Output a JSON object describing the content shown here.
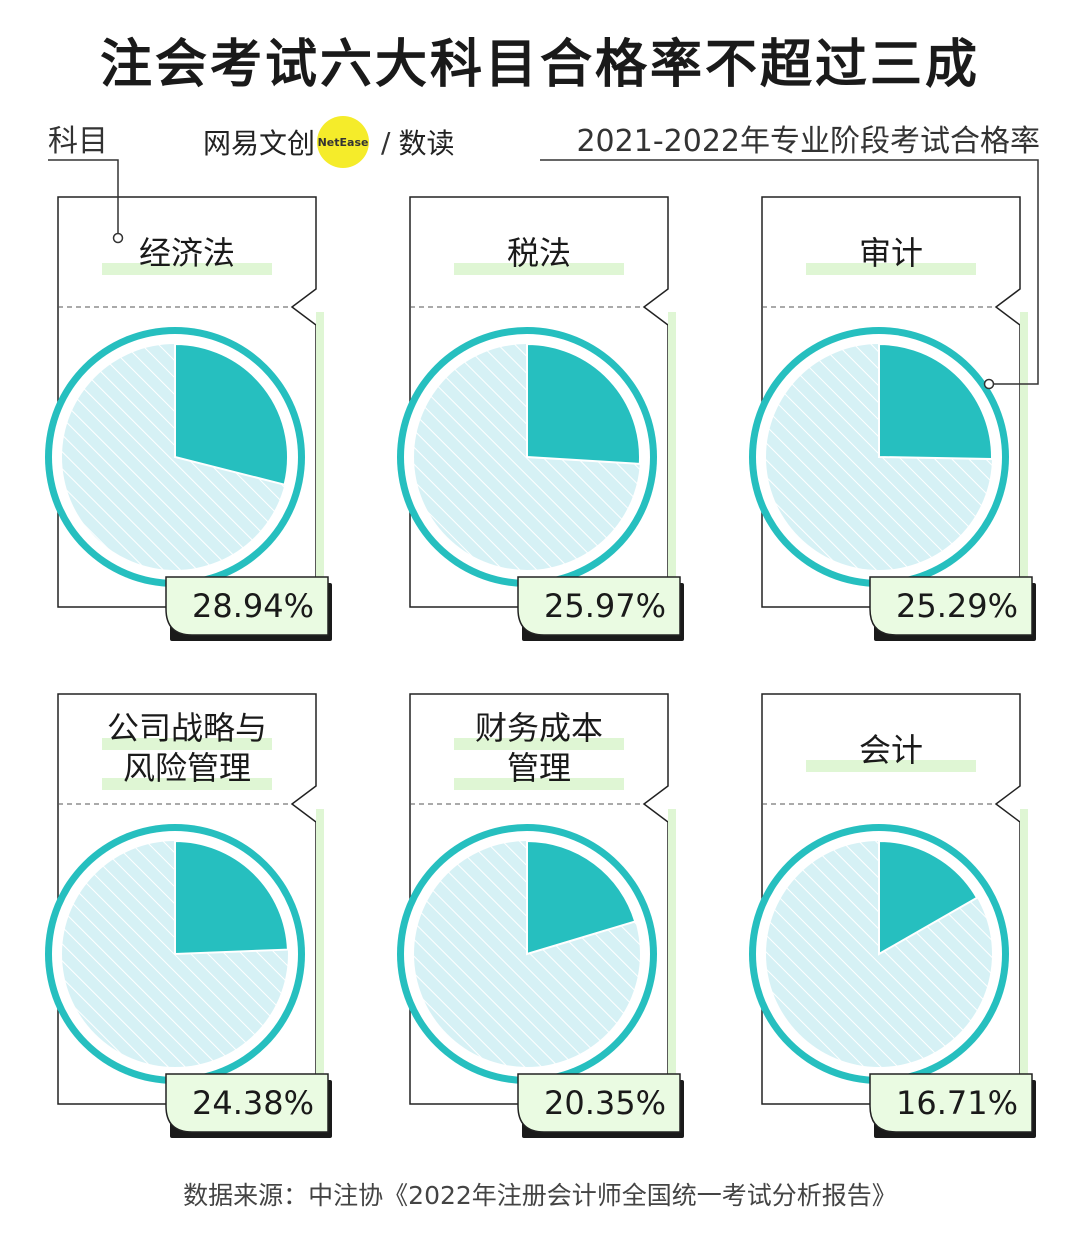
{
  "title": "注会考试六大科目合格率不超过三成",
  "axis_left_label": "科目",
  "brand": {
    "name": "网易文创",
    "logo_text": "NetEase",
    "slash": "/",
    "sub": "数读"
  },
  "axis_right_label": "2021-2022年专业阶段考试合格率",
  "source": "数据来源：中注协《2022年注册会计师全国统一考试分析报告》",
  "colors": {
    "teal": "#26bfbf",
    "light_blue": "#d6f1f5",
    "label_highlight": "#dff6d4",
    "pct_bg": "#eafbe2",
    "logo_yellow": "#f5ec2a"
  },
  "chart_data": {
    "type": "pie",
    "title": "注会考试六大科目合格率不超过三成",
    "subtitle": "2021-2022年专业阶段考试合格率",
    "categories": [
      "经济法",
      "税法",
      "审计",
      "公司战略与风险管理",
      "财务成本管理",
      "会计"
    ],
    "label_lines": [
      [
        "经济法"
      ],
      [
        "税法"
      ],
      [
        "审计"
      ],
      [
        "公司战略与",
        "风险管理"
      ],
      [
        "财务成本",
        "管理"
      ],
      [
        "会计"
      ]
    ],
    "values": [
      28.94,
      25.97,
      25.29,
      24.38,
      20.35,
      16.71
    ],
    "value_labels": [
      "28.94%",
      "25.97%",
      "25.29%",
      "24.38%",
      "20.35%",
      "16.71%"
    ],
    "unit": "%"
  }
}
